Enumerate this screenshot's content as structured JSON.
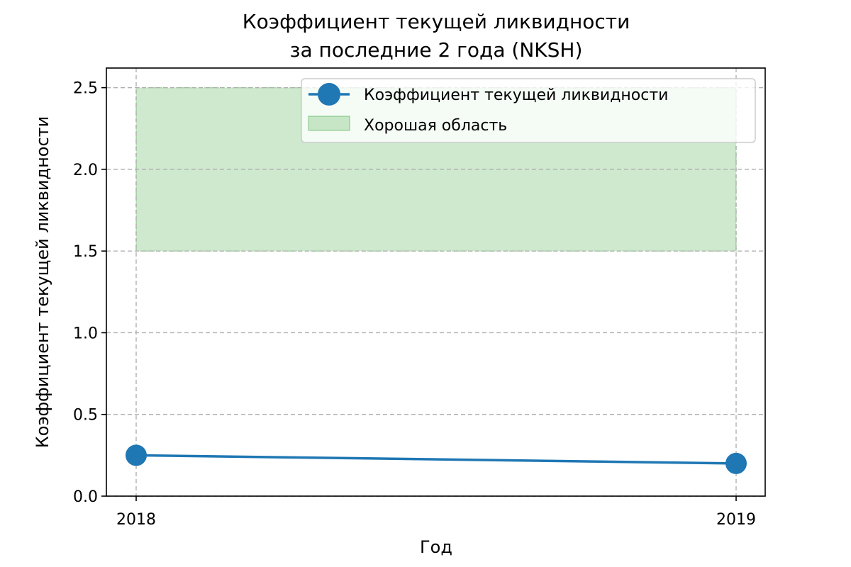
{
  "chart_data": {
    "type": "line",
    "title_lines": [
      "Коэффициент текущей ликвидности",
      "за последние 2 года (NKSH)"
    ],
    "xlabel": "Год",
    "ylabel": "Коэффициент текущей ликвидности",
    "x": [
      "2018",
      "2019"
    ],
    "series": [
      {
        "name": "Коэффициент текущей ликвидности",
        "values": [
          0.25,
          0.2
        ],
        "color": "#1f77b4"
      }
    ],
    "band": {
      "name": "Хорошая область",
      "y0": 1.5,
      "y1": 2.5,
      "color": "#2ca02c"
    },
    "ylim": [
      0,
      2.62
    ],
    "yticks": [
      "0.0",
      "0.5",
      "1.0",
      "1.5",
      "2.0",
      "2.5"
    ],
    "grid": true,
    "legend_position": "top-right"
  }
}
